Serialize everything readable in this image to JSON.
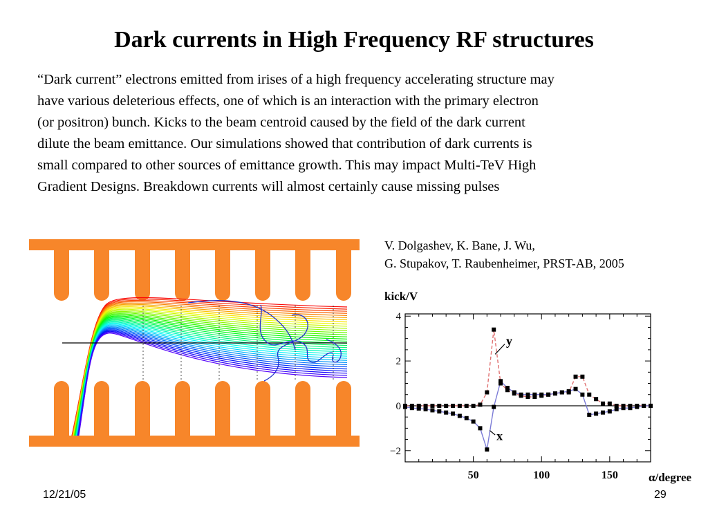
{
  "slide": {
    "title": "Dark currents in High Frequency RF structures",
    "body_lines": [
      "“Dark current” electrons emitted from irises of a high frequency accelerating structure may",
      "have various deleterious effects, one of which is an interaction with the primary electron",
      "(or positron) bunch. Kicks to the beam centroid caused by the field of the dark current",
      "dilute the beam emittance. Our simulations showed that contribution of dark currents is",
      "small compared to other sources of emittance growth.  This may impact Multi-TeV High",
      "Gradient Designs.  Breakdown currents will almost certainly cause missing pulses"
    ],
    "reference_lines": [
      "V. Dolgashev, K. Bane, J. Wu,",
      "G. Stupakov, T. Raubenheimer, PRST-AB, 2005"
    ],
    "footer_date": "12/21/05",
    "footer_page": "29"
  },
  "colors": {
    "structure_orange": "#f7862a",
    "x_series": "#000000",
    "y_series": "#000000",
    "x_fit_line": "#7b7bd6",
    "y_fit_line": "#e07070"
  },
  "chart_data": {
    "type": "scatter",
    "ylabel": "kick/V",
    "xlabel": "α/degree",
    "xticks": [
      50,
      100,
      150
    ],
    "yticks": [
      4,
      2,
      0,
      -2
    ],
    "xlim": [
      0,
      180
    ],
    "ylim": [
      -2.5,
      4.1
    ],
    "series": [
      {
        "name": "y",
        "x": [
          0,
          5,
          10,
          15,
          20,
          25,
          30,
          35,
          40,
          45,
          50,
          55,
          60,
          65,
          70,
          75,
          80,
          85,
          90,
          95,
          100,
          105,
          110,
          115,
          120,
          125,
          130,
          135,
          140,
          145,
          150,
          155,
          160,
          165,
          170,
          175,
          180
        ],
        "values": [
          0,
          0,
          0,
          0,
          0,
          0,
          0,
          0,
          0,
          0,
          0,
          0.05,
          0.6,
          3.4,
          1.0,
          0.7,
          0.55,
          0.45,
          0.4,
          0.4,
          0.45,
          0.5,
          0.55,
          0.6,
          0.6,
          1.3,
          1.3,
          0.5,
          0.3,
          0.1,
          0.1,
          0.0,
          0.0,
          0.0,
          0.0,
          0.0,
          0.0
        ]
      },
      {
        "name": "x",
        "x": [
          0,
          5,
          10,
          15,
          20,
          25,
          30,
          35,
          40,
          45,
          50,
          55,
          60,
          65,
          70,
          75,
          80,
          85,
          90,
          95,
          100,
          105,
          110,
          115,
          120,
          125,
          130,
          135,
          140,
          145,
          150,
          155,
          160,
          165,
          170,
          175,
          180
        ],
        "values": [
          -0.05,
          -0.1,
          -0.12,
          -0.15,
          -0.2,
          -0.25,
          -0.3,
          -0.35,
          -0.45,
          -0.55,
          -0.7,
          -1.0,
          -1.95,
          -0.05,
          1.1,
          0.8,
          0.6,
          0.5,
          0.5,
          0.5,
          0.5,
          0.5,
          0.55,
          0.6,
          0.65,
          0.75,
          0.5,
          -0.4,
          -0.35,
          -0.3,
          -0.25,
          -0.15,
          -0.1,
          -0.1,
          -0.05,
          0.0,
          0.0
        ]
      }
    ]
  }
}
